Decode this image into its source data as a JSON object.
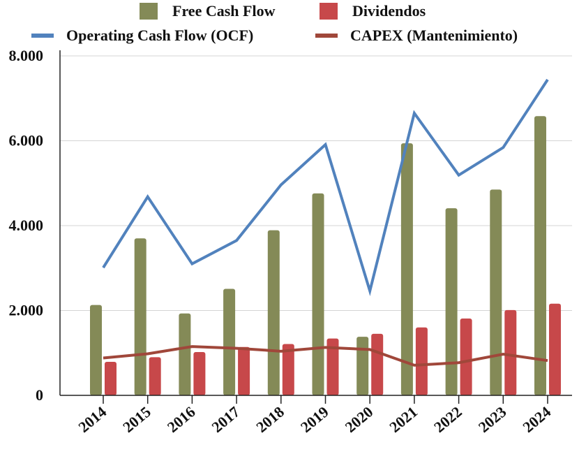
{
  "chart_data": {
    "type": "bar",
    "title": "",
    "xlabel": "",
    "ylabel": "",
    "categories": [
      "2014",
      "2015",
      "2016",
      "2017",
      "2018",
      "2019",
      "2020",
      "2021",
      "2022",
      "2023",
      "2024"
    ],
    "ylim": [
      0,
      8000
    ],
    "yticks": [
      0,
      2000,
      4000,
      6000,
      8000
    ],
    "ytick_labels": [
      "0",
      "2.000",
      "4.000",
      "6.000",
      "8.000"
    ],
    "grid": true,
    "legend_position": "top",
    "series": [
      {
        "name": "Free Cash Flow",
        "kind": "bar",
        "color": "#848a57",
        "values": [
          2130,
          3700,
          1930,
          2510,
          3890,
          4760,
          1380,
          5940,
          4410,
          4850,
          6580
        ]
      },
      {
        "name": "Dividendos",
        "kind": "bar",
        "color": "#c7484a",
        "values": [
          790,
          900,
          1020,
          1140,
          1210,
          1340,
          1450,
          1600,
          1810,
          2010,
          2160
        ]
      },
      {
        "name": "Operating Cash Flow (OCF)",
        "kind": "line",
        "color": "#5182bd",
        "values": [
          3010,
          4680,
          3100,
          3650,
          4960,
          5910,
          2460,
          6650,
          5190,
          5840,
          7440
        ]
      },
      {
        "name": "CAPEX (Mantenimiento)",
        "kind": "line",
        "color": "#a0473a",
        "values": [
          880,
          980,
          1150,
          1110,
          1040,
          1130,
          1080,
          710,
          770,
          970,
          820
        ]
      }
    ]
  }
}
